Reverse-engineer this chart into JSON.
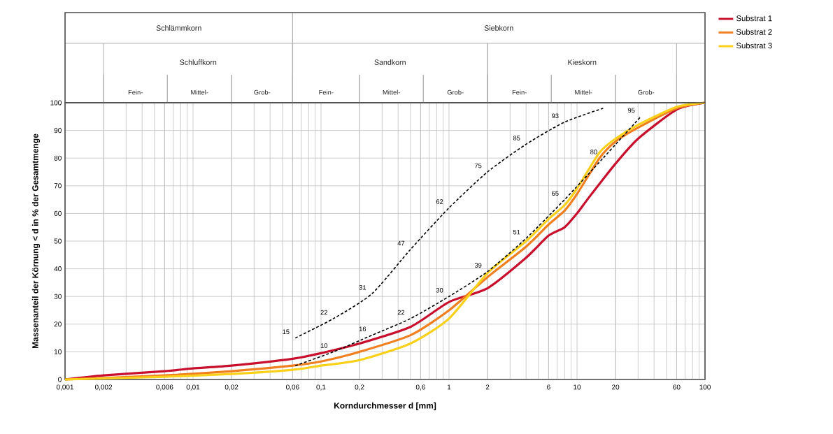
{
  "chart_data": {
    "type": "line",
    "xlabel": "Korndurchmesser d [mm]",
    "ylabel": "Massenanteil der Körnung < d in % der Gesamtmenge",
    "log": "x",
    "xlim": [
      0.001,
      100
    ],
    "ylim": [
      0,
      100
    ],
    "xticks": [
      {
        "value": 0.001,
        "label": "0,001"
      },
      {
        "value": 0.002,
        "label": "0,002"
      },
      {
        "value": 0.006,
        "label": "0,006"
      },
      {
        "value": 0.01,
        "label": "0,01"
      },
      {
        "value": 0.02,
        "label": "0,02"
      },
      {
        "value": 0.06,
        "label": "0,06"
      },
      {
        "value": 0.1,
        "label": "0,1"
      },
      {
        "value": 0.2,
        "label": "0,2"
      },
      {
        "value": 0.6,
        "label": "0,6"
      },
      {
        "value": 1,
        "label": "1"
      },
      {
        "value": 2,
        "label": "2"
      },
      {
        "value": 6,
        "label": "6"
      },
      {
        "value": 10,
        "label": "10"
      },
      {
        "value": 20,
        "label": "20"
      },
      {
        "value": 60,
        "label": "60"
      },
      {
        "value": 100,
        "label": "100"
      }
    ],
    "yticks": [
      0,
      10,
      20,
      30,
      40,
      50,
      60,
      70,
      80,
      90,
      100
    ],
    "grid": true,
    "legend": "top right",
    "series": [
      {
        "name": "Substrat 1",
        "color": "#c8102e",
        "x": [
          0.001,
          0.002,
          0.006,
          0.01,
          0.02,
          0.06,
          0.1,
          0.2,
          0.5,
          1,
          2,
          4,
          6,
          8,
          10,
          12.5,
          20,
          30,
          60,
          100
        ],
        "values": [
          0,
          1.5,
          3,
          4,
          5,
          7.5,
          9.5,
          13,
          19,
          28,
          33,
          44,
          52,
          55,
          60,
          66,
          78,
          87,
          97.5,
          100
        ]
      },
      {
        "name": "Substrat 2",
        "color": "#f07f1f",
        "x": [
          0.001,
          0.006,
          0.02,
          0.06,
          0.1,
          0.2,
          0.5,
          1,
          2,
          4,
          6,
          8,
          10,
          15,
          20,
          30,
          60,
          100
        ],
        "values": [
          0,
          1.5,
          3,
          5,
          6.5,
          10,
          16,
          25,
          37,
          48,
          56,
          61,
          67,
          80,
          86,
          91,
          98,
          100
        ]
      },
      {
        "name": "Substrat 3",
        "color": "#f9d01a",
        "x": [
          0.001,
          0.006,
          0.02,
          0.06,
          0.1,
          0.2,
          0.5,
          1,
          2,
          4,
          6,
          8,
          10,
          15,
          20,
          30,
          60,
          100
        ],
        "values": [
          0,
          1,
          2,
          3.5,
          5,
          7,
          13,
          22,
          38.5,
          50,
          58,
          63,
          69,
          82,
          87,
          92,
          98.5,
          100
        ]
      },
      {
        "color": "#000000",
        "line_style": "dashed",
        "x": [
          0.063,
          0.125,
          0.25,
          0.5,
          1,
          2,
          4,
          8,
          16
        ],
        "values": [
          15,
          22,
          31,
          47,
          62,
          75,
          85,
          93,
          98
        ],
        "value_labels": [
          "15",
          "22",
          "31",
          "47",
          "62",
          "75",
          "85",
          "93",
          null
        ]
      },
      {
        "color": "#000000",
        "line_style": "dashed",
        "x": [
          0.063,
          0.125,
          0.25,
          0.5,
          1,
          2,
          4,
          8,
          16,
          31.5
        ],
        "values": [
          5,
          10,
          16,
          22,
          30,
          39,
          51,
          65,
          80,
          95
        ],
        "value_labels": [
          null,
          "10",
          "16",
          "22",
          "30",
          "39",
          "51",
          "65",
          "80",
          "95"
        ]
      }
    ],
    "annotations": [
      "Schlämmkorn",
      "Siebkorn",
      "Schluffkorn",
      "Sandkorn",
      "Kieskorn",
      "Fein-",
      "Mittel-",
      "Grob-",
      "Fein-",
      "Mittel-",
      "Grob-",
      "Fein-",
      "Mittel-",
      "Grob-"
    ]
  }
}
